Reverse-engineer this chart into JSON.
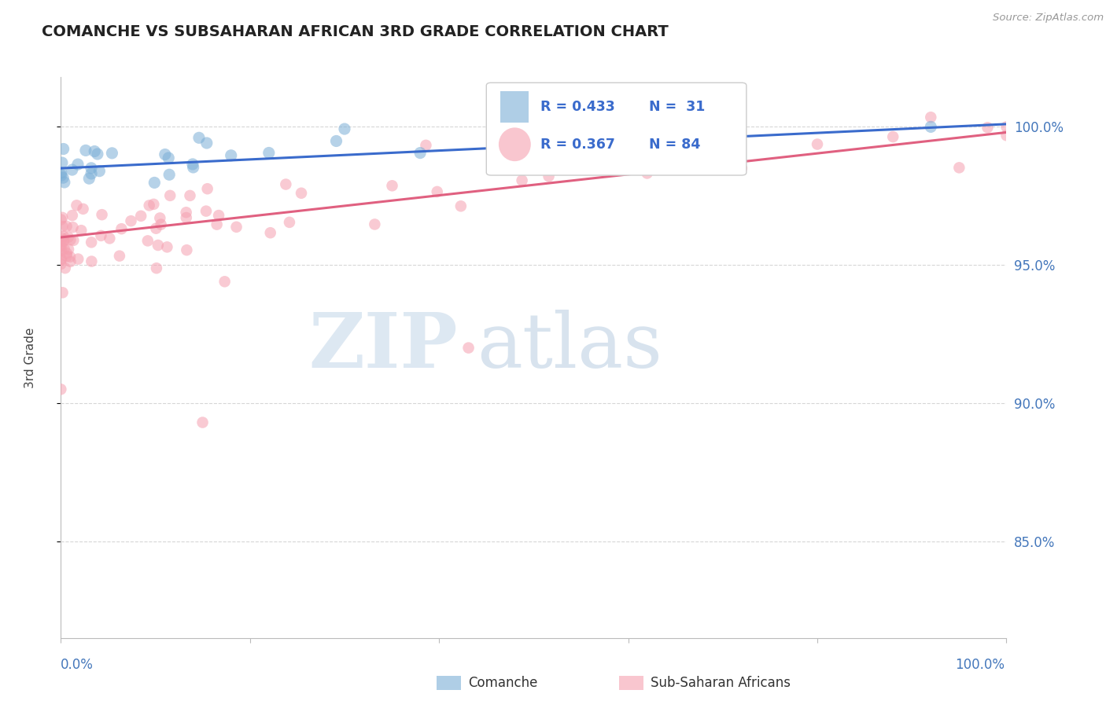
{
  "title": "COMANCHE VS SUBSAHARAN AFRICAN 3RD GRADE CORRELATION CHART",
  "source": "Source: ZipAtlas.com",
  "ylabel": "3rd Grade",
  "legend_r_comanche": "R = 0.433",
  "legend_n_comanche": "N =  31",
  "legend_r_subsaharan": "R = 0.367",
  "legend_n_subsaharan": "N = 84",
  "comanche_color": "#7aaed6",
  "subsaharan_color": "#f5a0b0",
  "trendline_blue": "#3a6bcc",
  "trendline_pink": "#e06080",
  "watermark_zip": "ZIP",
  "watermark_atlas": "atlas",
  "background_color": "#ffffff",
  "grid_color": "#cccccc",
  "axis_color": "#bbbbbb",
  "right_tick_color": "#4477BB",
  "yticks": [
    0.85,
    0.9,
    0.95,
    1.0
  ],
  "ytick_labels": [
    "85.0%",
    "90.0%",
    "95.0%",
    "100.0%"
  ],
  "ylim_low": 0.815,
  "ylim_high": 1.018,
  "xlim_low": 0.0,
  "xlim_high": 1.0,
  "com_intercept": 0.985,
  "com_slope": 0.016,
  "sub_intercept": 0.96,
  "sub_slope": 0.038
}
